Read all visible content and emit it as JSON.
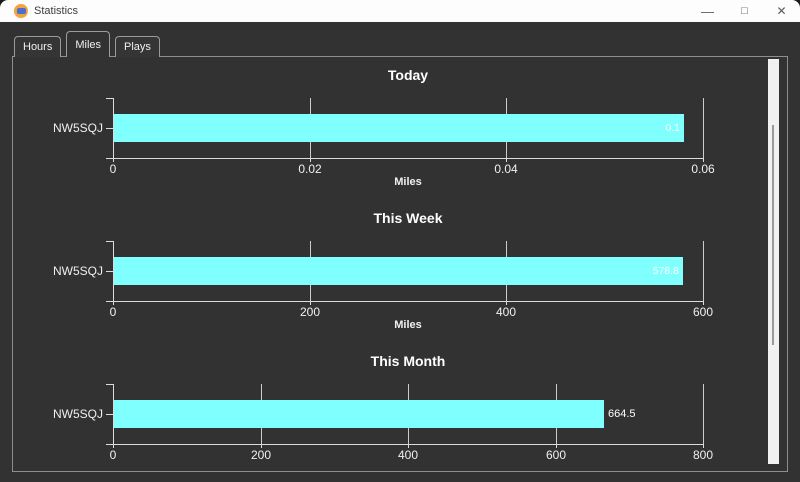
{
  "window": {
    "title": "Statistics",
    "controls": {
      "minimize": "—",
      "maximize": "□",
      "close": "✕"
    }
  },
  "tabs": [
    {
      "label": "Hours",
      "selected": false
    },
    {
      "label": "Miles",
      "selected": true
    },
    {
      "label": "Plays",
      "selected": false
    }
  ],
  "colors": {
    "bar": "#80ffff",
    "background": "#323232",
    "titlebar": "#fdfdfd",
    "axis": "#dcdcdc",
    "chart_text": "#f0f0f0"
  },
  "chart_data": [
    {
      "type": "bar",
      "orientation": "horizontal",
      "title": "Today",
      "categories": [
        "NW5SQJ"
      ],
      "values": [
        0.058
      ],
      "value_labels": [
        "0.1"
      ],
      "label_inside": true,
      "xlabel": "Miles",
      "xlim": [
        0,
        0.06
      ],
      "xtick_labels": [
        "0",
        "0.02",
        "0.04",
        "0.06"
      ],
      "xtick_values": [
        0,
        0.02,
        0.04,
        0.06
      ],
      "grid": true,
      "bar_color": "#80ffff"
    },
    {
      "type": "bar",
      "orientation": "horizontal",
      "title": "This Week",
      "categories": [
        "NW5SQJ"
      ],
      "values": [
        578.8
      ],
      "value_labels": [
        "578.8"
      ],
      "label_inside": true,
      "xlabel": "Miles",
      "xlim": [
        0,
        600
      ],
      "xtick_labels": [
        "0",
        "200",
        "400",
        "600"
      ],
      "xtick_values": [
        0,
        200,
        400,
        600
      ],
      "grid": true,
      "bar_color": "#80ffff"
    },
    {
      "type": "bar",
      "orientation": "horizontal",
      "title": "This Month",
      "categories": [
        "NW5SQJ"
      ],
      "values": [
        664.5
      ],
      "value_labels": [
        "664.5"
      ],
      "label_inside": false,
      "xlabel": "",
      "xlim": [
        0,
        800
      ],
      "xtick_labels": [
        "0",
        "200",
        "400",
        "600",
        "800"
      ],
      "xtick_values": [
        0,
        200,
        400,
        600,
        800
      ],
      "grid": true,
      "bar_color": "#80ffff"
    }
  ]
}
